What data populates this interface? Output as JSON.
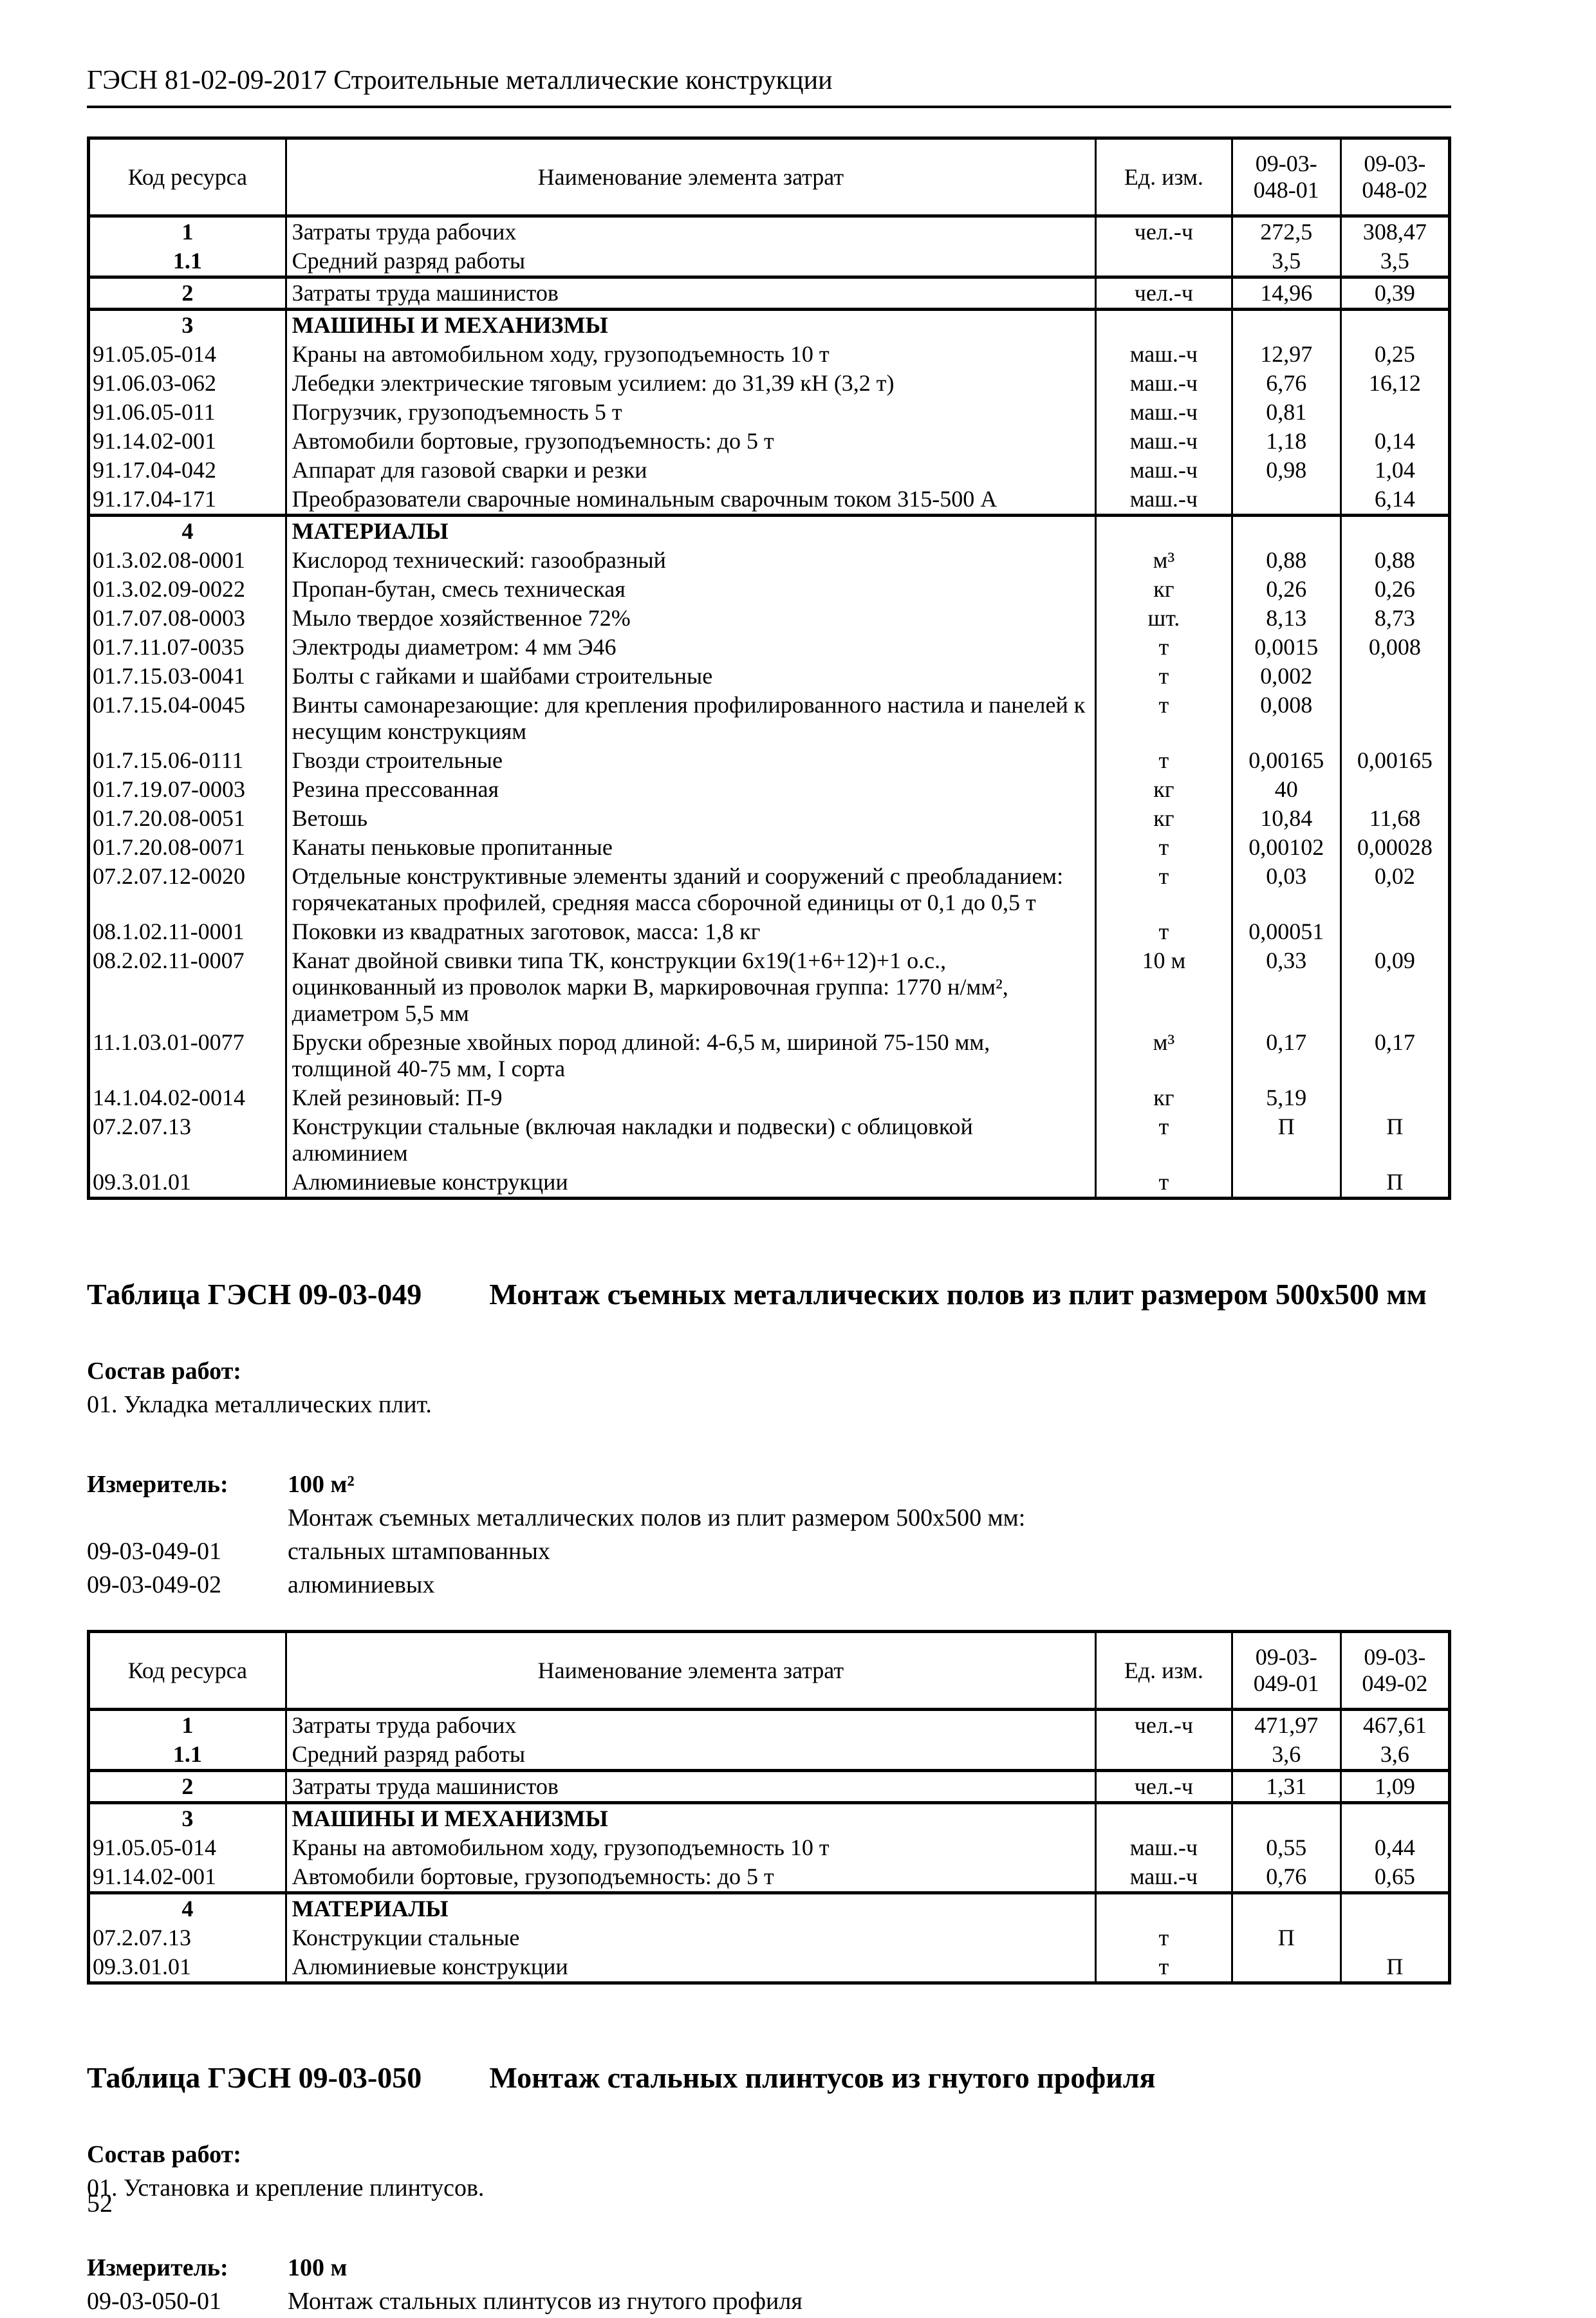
{
  "page": {
    "title": "ГЭСН 81-02-09-2017 Строительные металлические конструкции",
    "page_number": "52"
  },
  "table1": {
    "columns": [
      "Код ресурса",
      "Наименование элемента затрат",
      "Ед. изм.",
      "09-03-\n048-01",
      "09-03-\n048-02"
    ],
    "groups": [
      {
        "rows": [
          {
            "code": "1",
            "name": "Затраты труда рабочих",
            "unit": "чел.-ч",
            "v1": "272,5",
            "v2": "308,47"
          },
          {
            "code": "1.1",
            "name": "Средний разряд работы",
            "unit": "",
            "v1": "3,5",
            "v2": "3,5"
          }
        ]
      },
      {
        "rows": [
          {
            "code": "2",
            "name": "Затраты труда машинистов",
            "unit": "чел.-ч",
            "v1": "14,96",
            "v2": "0,39"
          }
        ]
      },
      {
        "rows": [
          {
            "code": "3",
            "name": "МАШИНЫ И МЕХАНИЗМЫ",
            "unit": "",
            "v1": "",
            "v2": "",
            "bold": true
          },
          {
            "code": "91.05.05-014",
            "name": "Краны на автомобильном ходу, грузоподъемность 10 т",
            "unit": "маш.-ч",
            "v1": "12,97",
            "v2": "0,25"
          },
          {
            "code": "91.06.03-062",
            "name": "Лебедки электрические тяговым усилием: до 31,39 кН (3,2 т)",
            "unit": "маш.-ч",
            "v1": "6,76",
            "v2": "16,12"
          },
          {
            "code": "91.06.05-011",
            "name": "Погрузчик, грузоподъемность 5 т",
            "unit": "маш.-ч",
            "v1": "0,81",
            "v2": ""
          },
          {
            "code": "91.14.02-001",
            "name": "Автомобили бортовые, грузоподъемность: до 5 т",
            "unit": "маш.-ч",
            "v1": "1,18",
            "v2": "0,14"
          },
          {
            "code": "91.17.04-042",
            "name": "Аппарат для газовой сварки и резки",
            "unit": "маш.-ч",
            "v1": "0,98",
            "v2": "1,04"
          },
          {
            "code": "91.17.04-171",
            "name": "Преобразователи сварочные номинальным сварочным током 315-500 А",
            "unit": "маш.-ч",
            "v1": "",
            "v2": "6,14"
          }
        ]
      },
      {
        "rows": [
          {
            "code": "4",
            "name": "МАТЕРИАЛЫ",
            "unit": "",
            "v1": "",
            "v2": "",
            "bold": true
          },
          {
            "code": "01.3.02.08-0001",
            "name": "Кислород технический: газообразный",
            "unit": "м³",
            "v1": "0,88",
            "v2": "0,88"
          },
          {
            "code": "01.3.02.09-0022",
            "name": "Пропан-бутан, смесь техническая",
            "unit": "кг",
            "v1": "0,26",
            "v2": "0,26"
          },
          {
            "code": "01.7.07.08-0003",
            "name": "Мыло твердое хозяйственное 72%",
            "unit": "шт.",
            "v1": "8,13",
            "v2": "8,73"
          },
          {
            "code": "01.7.11.07-0035",
            "name": "Электроды диаметром: 4 мм Э46",
            "unit": "т",
            "v1": "0,0015",
            "v2": "0,008"
          },
          {
            "code": "01.7.15.03-0041",
            "name": "Болты с гайками и шайбами строительные",
            "unit": "т",
            "v1": "0,002",
            "v2": ""
          },
          {
            "code": "01.7.15.04-0045",
            "name": "Винты самонарезающие: для крепления профилированного настила и панелей к несущим конструкциям",
            "unit": "т",
            "v1": "0,008",
            "v2": ""
          },
          {
            "code": "01.7.15.06-0111",
            "name": "Гвозди строительные",
            "unit": "т",
            "v1": "0,00165",
            "v2": "0,00165"
          },
          {
            "code": "01.7.19.07-0003",
            "name": "Резина прессованная",
            "unit": "кг",
            "v1": "40",
            "v2": ""
          },
          {
            "code": "01.7.20.08-0051",
            "name": "Ветошь",
            "unit": "кг",
            "v1": "10,84",
            "v2": "11,68"
          },
          {
            "code": "01.7.20.08-0071",
            "name": "Канаты пеньковые пропитанные",
            "unit": "т",
            "v1": "0,00102",
            "v2": "0,00028"
          },
          {
            "code": "07.2.07.12-0020",
            "name": "Отдельные конструктивные элементы зданий и сооружений с преобладанием: горячекатаных профилей, средняя масса сборочной единицы от 0,1 до 0,5 т",
            "unit": "т",
            "v1": "0,03",
            "v2": "0,02"
          },
          {
            "code": "08.1.02.11-0001",
            "name": "Поковки из квадратных заготовок, масса: 1,8 кг",
            "unit": "т",
            "v1": "0,00051",
            "v2": ""
          },
          {
            "code": "08.2.02.11-0007",
            "name": "Канат двойной свивки типа ТК, конструкции 6х19(1+6+12)+1 о.с., оцинкованный из проволок марки В, маркировочная группа: 1770 н/мм², диаметром 5,5 мм",
            "unit": "10 м",
            "v1": "0,33",
            "v2": "0,09"
          },
          {
            "code": "11.1.03.01-0077",
            "name": "Бруски обрезные хвойных пород длиной: 4-6,5 м, шириной 75-150 мм, толщиной 40-75 мм, I сорта",
            "unit": "м³",
            "v1": "0,17",
            "v2": "0,17"
          },
          {
            "code": "14.1.04.02-0014",
            "name": "Клей резиновый: П-9",
            "unit": "кг",
            "v1": "5,19",
            "v2": ""
          },
          {
            "code": "07.2.07.13",
            "name": "Конструкции стальные (включая накладки и подвески) с облицовкой алюминием",
            "unit": "т",
            "v1": "П",
            "v2": "П"
          },
          {
            "code": "09.3.01.01",
            "name": "Алюминиевые конструкции",
            "unit": "т",
            "v1": "",
            "v2": "П"
          }
        ]
      }
    ]
  },
  "section049": {
    "title_label": "Таблица ГЭСН 09-03-049",
    "title_text": "Монтаж съемных металлических полов из плит размером 500х500 мм",
    "sostav_label": "Состав работ:",
    "sostav_items": [
      "01. Укладка металлических плит."
    ],
    "izmeritel_label": "Измеритель:",
    "izmeritel_value": "100 м²",
    "note": "Монтаж съемных металлических полов из плит размером 500х500 мм:",
    "variants": [
      {
        "code": "09-03-049-01",
        "name": "стальных штампованных"
      },
      {
        "code": "09-03-049-02",
        "name": "алюминиевых"
      }
    ]
  },
  "table2": {
    "columns": [
      "Код ресурса",
      "Наименование элемента затрат",
      "Ед. изм.",
      "09-03-\n049-01",
      "09-03-\n049-02"
    ],
    "groups": [
      {
        "rows": [
          {
            "code": "1",
            "name": "Затраты труда рабочих",
            "unit": "чел.-ч",
            "v1": "471,97",
            "v2": "467,61"
          },
          {
            "code": "1.1",
            "name": "Средний разряд работы",
            "unit": "",
            "v1": "3,6",
            "v2": "3,6"
          }
        ]
      },
      {
        "rows": [
          {
            "code": "2",
            "name": "Затраты труда машинистов",
            "unit": "чел.-ч",
            "v1": "1,31",
            "v2": "1,09"
          }
        ]
      },
      {
        "rows": [
          {
            "code": "3",
            "name": "МАШИНЫ И МЕХАНИЗМЫ",
            "unit": "",
            "v1": "",
            "v2": "",
            "bold": true
          },
          {
            "code": "91.05.05-014",
            "name": "Краны на автомобильном ходу, грузоподъемность 10 т",
            "unit": "маш.-ч",
            "v1": "0,55",
            "v2": "0,44"
          },
          {
            "code": "91.14.02-001",
            "name": "Автомобили бортовые, грузоподъемность: до 5 т",
            "unit": "маш.-ч",
            "v1": "0,76",
            "v2": "0,65"
          }
        ]
      },
      {
        "rows": [
          {
            "code": "4",
            "name": "МАТЕРИАЛЫ",
            "unit": "",
            "v1": "",
            "v2": "",
            "bold": true
          },
          {
            "code": "07.2.07.13",
            "name": "Конструкции стальные",
            "unit": "т",
            "v1": "П",
            "v2": ""
          },
          {
            "code": "09.3.01.01",
            "name": "Алюминиевые конструкции",
            "unit": "т",
            "v1": "",
            "v2": "П"
          }
        ]
      }
    ]
  },
  "section050": {
    "title_label": "Таблица ГЭСН 09-03-050",
    "title_text": "Монтаж стальных плинтусов из гнутого профиля",
    "sostav_label": "Состав работ:",
    "sostav_items": [
      "01. Установка и крепление плинтусов."
    ],
    "izmeritel_label": "Измеритель:",
    "izmeritel_value": "100 м",
    "variants": [
      {
        "code": "09-03-050-01",
        "name": "Монтаж стальных плинтусов из гнутого профиля"
      }
    ]
  }
}
